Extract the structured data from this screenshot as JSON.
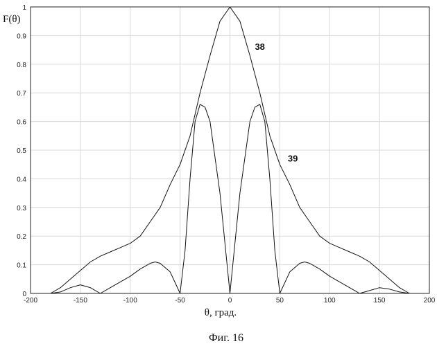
{
  "chart_data": {
    "type": "line",
    "ylabel": "F(θ)",
    "xlabel": "θ, град.",
    "caption": "Фиг. 16",
    "xlim": [
      -200,
      200
    ],
    "ylim": [
      0,
      1
    ],
    "x_ticks": [
      -200,
      -150,
      -100,
      -50,
      0,
      50,
      100,
      150,
      200
    ],
    "x_tick_labels": [
      "-200",
      "-150",
      "-100",
      "-50",
      "0",
      "50",
      "100",
      "150",
      "200"
    ],
    "y_ticks": [
      0,
      0.1,
      0.2,
      0.3,
      0.4,
      0.5,
      0.6,
      0.7,
      0.8,
      0.9,
      1
    ],
    "y_tick_labels": [
      "0",
      "0.1",
      "0.2",
      "0.3",
      "0.4",
      "0.5",
      "0.6",
      "0.7",
      "0.8",
      "0.9",
      "1"
    ],
    "grid": true,
    "series": [
      {
        "name": "38",
        "label_at": [
          25,
          0.85
        ],
        "x": [
          -180,
          -170,
          -160,
          -150,
          -140,
          -130,
          -120,
          -110,
          -100,
          -90,
          -80,
          -70,
          -60,
          -50,
          -40,
          -30,
          -20,
          -10,
          0,
          10,
          20,
          30,
          40,
          50,
          60,
          70,
          80,
          90,
          100,
          110,
          120,
          130,
          140,
          150,
          160,
          170,
          180
        ],
        "y": [
          0,
          0.02,
          0.05,
          0.08,
          0.11,
          0.13,
          0.145,
          0.16,
          0.175,
          0.2,
          0.25,
          0.3,
          0.38,
          0.45,
          0.55,
          0.7,
          0.83,
          0.95,
          1.0,
          0.95,
          0.83,
          0.7,
          0.55,
          0.45,
          0.38,
          0.3,
          0.25,
          0.2,
          0.175,
          0.16,
          0.145,
          0.13,
          0.11,
          0.08,
          0.05,
          0.02,
          0
        ]
      },
      {
        "name": "39",
        "label_at": [
          58,
          0.46
        ],
        "x": [
          -180,
          -170,
          -160,
          -150,
          -140,
          -130,
          -120,
          -110,
          -100,
          -90,
          -80,
          -75,
          -70,
          -60,
          -50,
          -45,
          -40,
          -35,
          -30,
          -25,
          -20,
          -10,
          0,
          10,
          20,
          25,
          30,
          35,
          40,
          45,
          50,
          60,
          70,
          75,
          80,
          90,
          100,
          110,
          120,
          130,
          140,
          150,
          160,
          170,
          180
        ],
        "y": [
          0,
          0.005,
          0.02,
          0.03,
          0.02,
          0,
          0.02,
          0.04,
          0.06,
          0.085,
          0.105,
          0.11,
          0.105,
          0.075,
          0,
          0.15,
          0.4,
          0.6,
          0.66,
          0.65,
          0.6,
          0.35,
          0,
          0.35,
          0.6,
          0.65,
          0.66,
          0.6,
          0.4,
          0.15,
          0,
          0.075,
          0.105,
          0.11,
          0.105,
          0.085,
          0.06,
          0.04,
          0.02,
          0,
          0.01,
          0.02,
          0.015,
          0.005,
          0
        ]
      }
    ]
  }
}
